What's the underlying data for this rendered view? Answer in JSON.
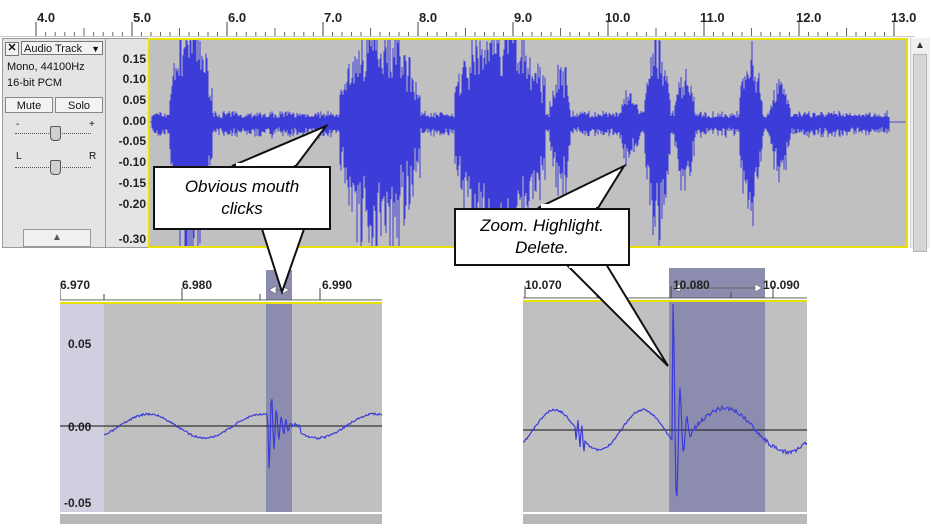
{
  "ruler": {
    "labels": [
      "4.0",
      "5.0",
      "6.0",
      "7.0",
      "8.0",
      "9.0",
      "10.0",
      "11.0",
      "12.0",
      "13.0"
    ]
  },
  "track": {
    "name": "Audio Track",
    "close_glyph": "✕",
    "menu_arrow": "▼",
    "rate": "Mono, 44100Hz",
    "format": "16-bit PCM",
    "mute_label": "Mute",
    "solo_label": "Solo",
    "gain_minus": "-",
    "gain_plus": "+",
    "pan_left": "L",
    "pan_right": "R",
    "collapse_glyph": "▲",
    "scale": [
      "0.15",
      "0.10",
      "0.05",
      "0.00",
      "-0.05",
      "-0.10",
      "-0.15",
      "-0.20",
      "-0.30"
    ]
  },
  "zoom_left": {
    "ruler": [
      "6.970",
      "6.980",
      "6.990"
    ],
    "scale": [
      "0.05",
      "0.00",
      "-0.05"
    ]
  },
  "zoom_right": {
    "ruler": [
      "10.070",
      "10.080",
      "10.090"
    ]
  },
  "callouts": {
    "clicks": "Obvious mouth clicks",
    "zoom": "Zoom. Highlight. Delete."
  },
  "colors": {
    "waveform": "#3c3cd8",
    "track_bg": "#c0c0c0",
    "selection": "#8c8cae",
    "focus_border": "#e8e000"
  },
  "icons": {
    "scroll_up": "▲"
  }
}
